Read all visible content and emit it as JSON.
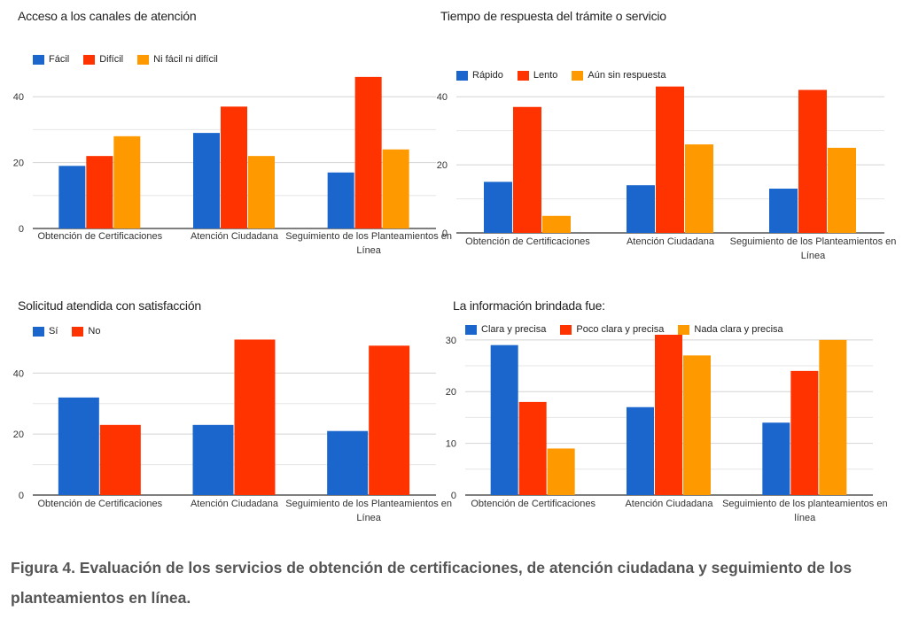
{
  "colors": {
    "blue": "#1a66cc",
    "red": "#ff3300",
    "orange": "#ff9900"
  },
  "chart_data": [
    {
      "type": "bar",
      "title": "Acceso a los canales de atención",
      "categories": [
        "Obtención de Certificaciones",
        "Atención Ciudadana",
        "Seguimiento de los Planteamientos en Línea"
      ],
      "series": [
        {
          "name": "Fácil",
          "color": "#1a66cc",
          "values": [
            19,
            29,
            17
          ]
        },
        {
          "name": "Difícil",
          "color": "#ff3300",
          "values": [
            22,
            37,
            46
          ]
        },
        {
          "name": "Ni fácil ni difícil",
          "color": "#ff9900",
          "values": [
            28,
            22,
            24
          ]
        }
      ],
      "ylim": [
        0,
        50
      ],
      "yticks": [
        0,
        20,
        40
      ]
    },
    {
      "type": "bar",
      "title": "Tiempo de respuesta del trámite o servicio",
      "categories": [
        "Obtención de Certificaciones",
        "Atención Ciudadana",
        "Seguimiento de los Planteamientos en Línea"
      ],
      "series": [
        {
          "name": "Rápido",
          "color": "#1a66cc",
          "values": [
            15,
            14,
            13
          ]
        },
        {
          "name": "Lento",
          "color": "#ff3300",
          "values": [
            37,
            43,
            42
          ]
        },
        {
          "name": "Aún sin respuesta",
          "color": "#ff9900",
          "values": [
            5,
            26,
            25
          ]
        }
      ],
      "ylim": [
        0,
        45
      ],
      "yticks": [
        0,
        20,
        40
      ]
    },
    {
      "type": "bar",
      "title": "Solicitud atendida con satisfacción",
      "categories": [
        "Obtención de Certificaciones",
        "Atención Ciudadana",
        "Seguimiento de los Planteamientos en Línea"
      ],
      "series": [
        {
          "name": "Sí",
          "color": "#1a66cc",
          "values": [
            32,
            23,
            21
          ]
        },
        {
          "name": "No",
          "color": "#ff3300",
          "values": [
            23,
            51,
            49
          ]
        }
      ],
      "ylim": [
        0,
        52
      ],
      "yticks": [
        0,
        20,
        40
      ]
    },
    {
      "type": "bar",
      "title": "La información brindada fue:",
      "categories": [
        "Obtención de Certificaciones",
        "Atención Ciudadana",
        "Seguimiento de los planteamientos en línea"
      ],
      "series": [
        {
          "name": "Clara y precisa",
          "color": "#1a66cc",
          "values": [
            29,
            17,
            14
          ]
        },
        {
          "name": "Poco clara y precisa",
          "color": "#ff3300",
          "values": [
            18,
            31,
            24
          ]
        },
        {
          "name": "Nada clara y precisa",
          "color": "#ff9900",
          "values": [
            9,
            27,
            30
          ]
        }
      ],
      "ylim": [
        0,
        31
      ],
      "yticks": [
        0,
        10,
        20,
        30
      ]
    }
  ],
  "caption": "Figura 4. Evaluación de los servicios de obtención de certificaciones, de atención ciudadana y seguimiento de los planteamientos en línea."
}
